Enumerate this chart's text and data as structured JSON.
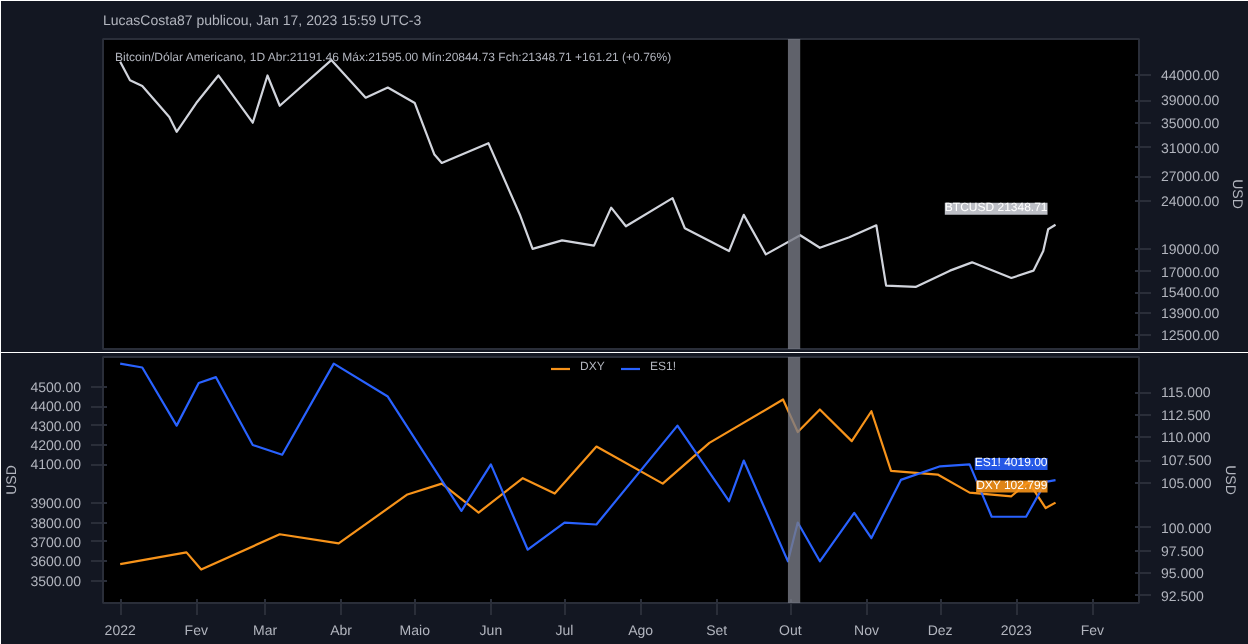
{
  "chart_data": [
    {
      "type": "line",
      "title": "LucasCosta87 publicou, Jan 17, 2023 15:59 UTC-3",
      "subtitle": "Bitcoin/Dólar Americano, 1D  Abr:21191.46  Máx:21595.00  Mín:20844.73  Fch:21348.71  +161.21 (+0.76%)",
      "ylabel": "USD",
      "x": [
        "2022-01-01",
        "2022-01-05",
        "2022-01-10",
        "2022-01-21",
        "2022-01-24",
        "2022-02-01",
        "2022-02-10",
        "2022-02-24",
        "2022-03-02",
        "2022-03-07",
        "2022-03-28",
        "2022-04-11",
        "2022-04-20",
        "2022-05-01",
        "2022-05-09",
        "2022-05-12",
        "2022-05-31",
        "2022-06-13",
        "2022-06-18",
        "2022-06-30",
        "2022-07-13",
        "2022-07-20",
        "2022-07-26",
        "2022-08-14",
        "2022-08-19",
        "2022-09-06",
        "2022-09-12",
        "2022-09-21",
        "2022-10-05",
        "2022-10-13",
        "2022-10-25",
        "2022-11-05",
        "2022-11-09",
        "2022-11-21",
        "2022-12-05",
        "2022-12-14",
        "2022-12-30",
        "2023-01-08",
        "2023-01-12",
        "2023-01-14",
        "2023-01-17"
      ],
      "series": [
        {
          "color": "#d1d4dc",
          "values": [
            47000,
            43000,
            41800,
            36000,
            33500,
            38500,
            44000,
            35000,
            44000,
            38000,
            47400,
            39500,
            41500,
            38500,
            30000,
            28800,
            31700,
            22300,
            19000,
            19800,
            19300,
            23200,
            21200,
            24300,
            21000,
            18800,
            22400,
            18500,
            20300,
            19100,
            20100,
            21300,
            15900,
            15800,
            17100,
            17800,
            16500,
            17100,
            18800,
            20900,
            21348.71
          ],
          "value_labels": [
            null,
            null,
            null,
            null,
            null,
            null,
            null,
            null,
            null,
            null,
            null,
            null,
            null,
            null,
            null,
            null,
            null,
            null,
            null,
            null,
            null,
            null,
            null,
            null,
            null,
            null,
            null,
            null,
            null,
            null,
            null,
            null,
            null,
            null,
            null,
            null,
            null,
            null,
            null,
            null,
            "BTCUSD 21348.71"
          ]
        }
      ],
      "log": "y",
      "ylim": [
        11700,
        52500
      ],
      "yticks": [
        {
          "value": 44000,
          "label": "44000.00"
        },
        {
          "value": 39000,
          "label": "39000.00"
        },
        {
          "value": 35000,
          "label": "35000.00"
        },
        {
          "value": 31000,
          "label": "31000.00"
        },
        {
          "value": 27000,
          "label": "27000.00"
        },
        {
          "value": 24000,
          "label": "24000.00"
        },
        {
          "value": 19000,
          "label": "19000.00"
        },
        {
          "value": 17000,
          "label": "17000.00"
        },
        {
          "value": 15400,
          "label": "15400.00"
        },
        {
          "value": 13900,
          "label": "13900.00"
        },
        {
          "value": 12500,
          "label": "12500.00"
        }
      ],
      "xlim": [
        "2021-12-25",
        "2023-02-20"
      ],
      "tick_labels": "y",
      "bands": [
        {
          "axis": "x",
          "from": "2022-09-30",
          "to": "2022-10-05",
          "color": "#787b86"
        }
      ]
    },
    {
      "type": "line",
      "ylabel": "USD",
      "y2label": "USD",
      "series": [
        {
          "name": "DXY",
          "color": "#f7931a",
          "axis": "y2",
          "x": [
            "2022-01-01",
            "2022-01-28",
            "2022-02-03",
            "2022-03-07",
            "2022-03-31",
            "2022-04-28",
            "2022-05-12",
            "2022-05-27",
            "2022-06-14",
            "2022-06-27",
            "2022-07-14",
            "2022-08-10",
            "2022-08-29",
            "2022-09-28",
            "2022-10-04",
            "2022-10-13",
            "2022-10-26",
            "2022-11-03",
            "2022-11-11",
            "2022-11-30",
            "2022-12-13",
            "2022-12-30",
            "2023-01-06",
            "2023-01-13",
            "2023-01-17"
          ],
          "values": [
            96.0,
            97.3,
            95.4,
            99.3,
            98.3,
            103.7,
            104.9,
            101.7,
            105.5,
            103.8,
            109.0,
            104.9,
            109.4,
            114.2,
            110.6,
            113.1,
            109.6,
            112.9,
            106.3,
            105.9,
            103.9,
            103.5,
            105.1,
            102.2,
            102.799
          ],
          "value_labels": [
            null,
            null,
            null,
            null,
            null,
            null,
            null,
            null,
            null,
            null,
            null,
            null,
            null,
            null,
            null,
            null,
            null,
            null,
            null,
            null,
            null,
            null,
            null,
            null,
            "DXY 102.799"
          ]
        },
        {
          "name": "ES1!",
          "color": "#2962ff",
          "x": [
            "2022-01-01",
            "2022-01-10",
            "2022-01-24",
            "2022-02-02",
            "2022-02-09",
            "2022-02-24",
            "2022-03-08",
            "2022-03-29",
            "2022-04-20",
            "2022-05-20",
            "2022-06-01",
            "2022-06-16",
            "2022-07-01",
            "2022-07-14",
            "2022-08-16",
            "2022-09-06",
            "2022-09-12",
            "2022-09-30",
            "2022-10-04",
            "2022-10-13",
            "2022-10-27",
            "2022-11-03",
            "2022-11-15",
            "2022-12-01",
            "2022-12-13",
            "2022-12-22",
            "2023-01-05",
            "2023-01-13",
            "2023-01-17"
          ],
          "values": [
            4620,
            4600,
            4300,
            4520,
            4550,
            4200,
            4150,
            4620,
            4450,
            3860,
            4100,
            3660,
            3800,
            3790,
            4300,
            3910,
            4120,
            3600,
            3800,
            3600,
            3850,
            3720,
            4020,
            4090,
            4100,
            3830,
            3830,
            4010,
            4019
          ],
          "value_labels": [
            null,
            null,
            null,
            null,
            null,
            null,
            null,
            null,
            null,
            null,
            null,
            null,
            null,
            null,
            null,
            null,
            null,
            null,
            null,
            null,
            null,
            null,
            null,
            null,
            null,
            null,
            null,
            null,
            "ES1! 4019.00"
          ]
        }
      ],
      "ylim": [
        3385,
        4654
      ],
      "yticks": [
        {
          "value": 4500,
          "label": "4500.00"
        },
        {
          "value": 4400,
          "label": "4400.00"
        },
        {
          "value": 4300,
          "label": "4300.00"
        },
        {
          "value": 4200,
          "label": "4200.00"
        },
        {
          "value": 4100,
          "label": "4100.00"
        },
        {
          "value": 3900,
          "label": "3900.00"
        },
        {
          "value": 3800,
          "label": "3800.00"
        },
        {
          "value": 3700,
          "label": "3700.00"
        },
        {
          "value": 3600,
          "label": "3600.00"
        },
        {
          "value": 3500,
          "label": "3500.00"
        }
      ],
      "y2lim": [
        91.7,
        118.9
      ],
      "y2ticks": [
        {
          "value": 115,
          "label": "115.000"
        },
        {
          "value": 112.5,
          "label": "112.500"
        },
        {
          "value": 110,
          "label": "110.000"
        },
        {
          "value": 107.5,
          "label": "107.500"
        },
        {
          "value": 105,
          "label": "105.000"
        },
        {
          "value": 100,
          "label": "100.000"
        },
        {
          "value": 97.5,
          "label": "97.500"
        },
        {
          "value": 95,
          "label": "95.000"
        },
        {
          "value": 92.5,
          "label": "92.500"
        }
      ],
      "xlim": [
        "2021-12-25",
        "2023-02-20"
      ],
      "xticks": [
        {
          "value": "2022-01-01",
          "label": "2022"
        },
        {
          "value": "2022-02-01",
          "label": "Fev"
        },
        {
          "value": "2022-03-01",
          "label": "Mar"
        },
        {
          "value": "2022-04-01",
          "label": "Abr"
        },
        {
          "value": "2022-05-01",
          "label": "Maio"
        },
        {
          "value": "2022-06-01",
          "label": "Jun"
        },
        {
          "value": "2022-07-01",
          "label": "Jul"
        },
        {
          "value": "2022-08-01",
          "label": "Ago"
        },
        {
          "value": "2022-09-01",
          "label": "Set"
        },
        {
          "value": "2022-10-01",
          "label": "Out"
        },
        {
          "value": "2022-11-01",
          "label": "Nov"
        },
        {
          "value": "2022-12-01",
          "label": "Dez"
        },
        {
          "value": "2023-01-01",
          "label": "2023"
        },
        {
          "value": "2023-02-01",
          "label": "Fev"
        }
      ],
      "legend": "top",
      "bands": [
        {
          "axis": "x",
          "from": "2022-09-30",
          "to": "2022-10-05",
          "color": "#787b86"
        }
      ]
    }
  ]
}
